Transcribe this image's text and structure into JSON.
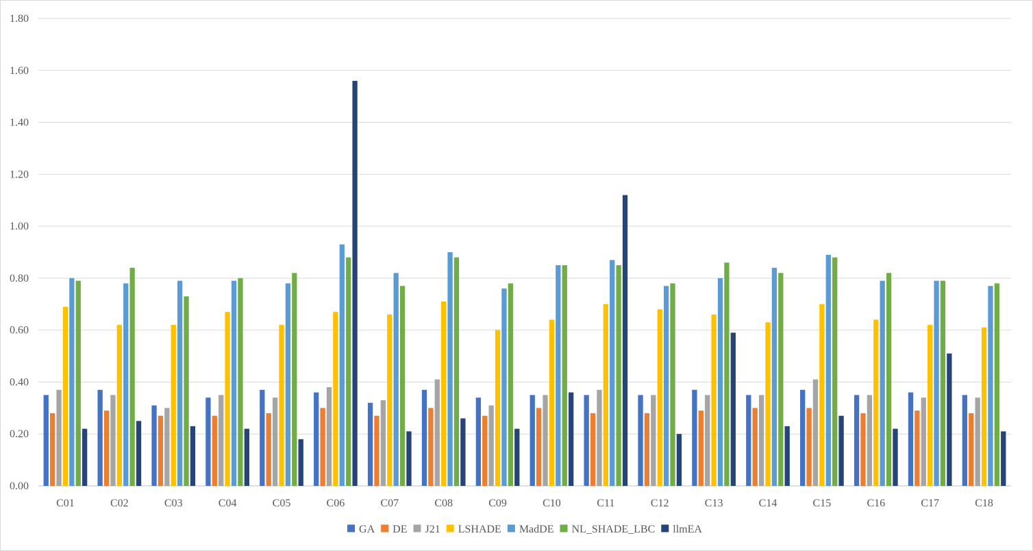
{
  "chart_data": {
    "type": "bar",
    "title": "",
    "xlabel": "",
    "ylabel": "",
    "ylim": [
      0,
      1.8
    ],
    "yticks": [
      "0.00",
      "0.20",
      "0.40",
      "0.60",
      "0.80",
      "1.00",
      "1.20",
      "1.40",
      "1.60",
      "1.80"
    ],
    "grid": true,
    "legend_position": "bottom",
    "categories": [
      "C01",
      "C02",
      "C03",
      "C04",
      "C05",
      "C06",
      "C07",
      "C08",
      "C09",
      "C10",
      "C11",
      "C12",
      "C13",
      "C14",
      "C15",
      "C16",
      "C17",
      "C18"
    ],
    "series": [
      {
        "name": "GA",
        "color": "#4472c4",
        "values": [
          0.35,
          0.37,
          0.31,
          0.34,
          0.37,
          0.36,
          0.32,
          0.37,
          0.34,
          0.35,
          0.35,
          0.35,
          0.37,
          0.35,
          0.37,
          0.35,
          0.36,
          0.35
        ]
      },
      {
        "name": "DE",
        "color": "#ed7d31",
        "values": [
          0.28,
          0.29,
          0.27,
          0.27,
          0.28,
          0.3,
          0.27,
          0.3,
          0.27,
          0.3,
          0.28,
          0.28,
          0.29,
          0.3,
          0.3,
          0.28,
          0.29,
          0.28
        ]
      },
      {
        "name": "J21",
        "color": "#a5a5a5",
        "values": [
          0.37,
          0.35,
          0.3,
          0.35,
          0.34,
          0.38,
          0.33,
          0.41,
          0.31,
          0.35,
          0.37,
          0.35,
          0.35,
          0.35,
          0.41,
          0.35,
          0.34,
          0.34
        ]
      },
      {
        "name": "LSHADE",
        "color": "#ffc000",
        "values": [
          0.69,
          0.62,
          0.62,
          0.67,
          0.62,
          0.67,
          0.66,
          0.71,
          0.6,
          0.64,
          0.7,
          0.68,
          0.66,
          0.63,
          0.7,
          0.64,
          0.62,
          0.61
        ]
      },
      {
        "name": "MadDE",
        "color": "#5b9bd5",
        "values": [
          0.8,
          0.78,
          0.79,
          0.79,
          0.78,
          0.93,
          0.82,
          0.9,
          0.76,
          0.85,
          0.87,
          0.77,
          0.8,
          0.84,
          0.89,
          0.79,
          0.79,
          0.77
        ]
      },
      {
        "name": "NL_SHADE_LBC",
        "color": "#70ad47",
        "values": [
          0.79,
          0.84,
          0.73,
          0.8,
          0.82,
          0.88,
          0.77,
          0.88,
          0.78,
          0.85,
          0.85,
          0.78,
          0.86,
          0.82,
          0.88,
          0.82,
          0.79,
          0.78
        ]
      },
      {
        "name": "llmEA",
        "color": "#264478",
        "values": [
          0.22,
          0.25,
          0.23,
          0.22,
          0.18,
          1.56,
          0.21,
          0.26,
          0.22,
          0.36,
          1.12,
          0.2,
          0.59,
          0.23,
          0.27,
          0.22,
          0.51,
          0.21
        ]
      }
    ]
  }
}
